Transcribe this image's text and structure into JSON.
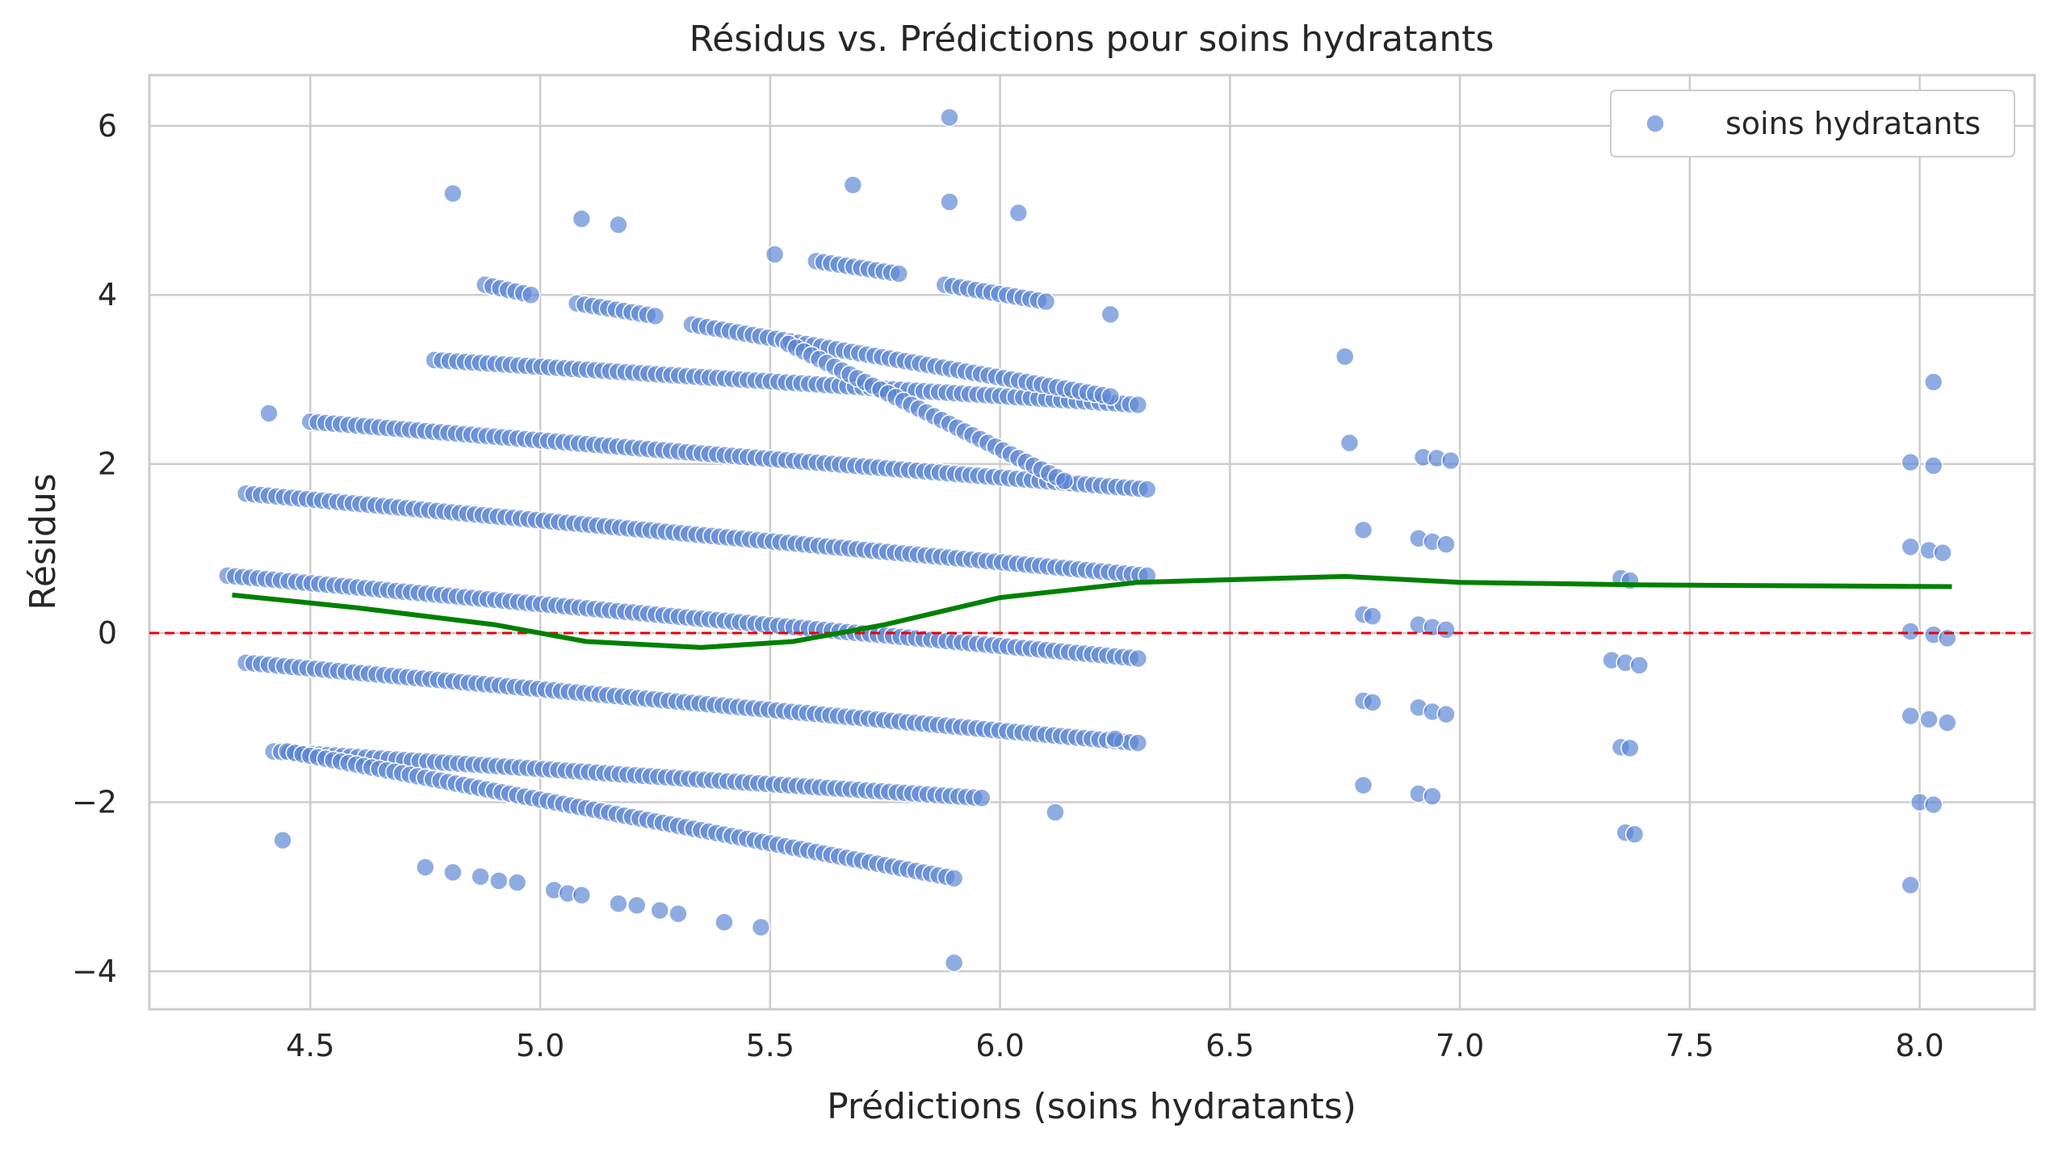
{
  "chart_data": {
    "type": "scatter",
    "title": "Résidus vs. Prédictions pour soins hydratants",
    "xlabel": "Prédictions (soins hydratants)",
    "ylabel": "Résidus",
    "xlim": [
      4.15,
      8.25
    ],
    "ylim": [
      -4.45,
      6.6
    ],
    "xticks": [
      4.5,
      5.0,
      5.5,
      6.0,
      6.5,
      7.0,
      7.5,
      8.0
    ],
    "xtick_labels": [
      "4.5",
      "5.0",
      "5.5",
      "6.0",
      "6.5",
      "7.0",
      "7.5",
      "8.0"
    ],
    "yticks": [
      -4,
      -2,
      0,
      2,
      4,
      6
    ],
    "ytick_labels": [
      "−4",
      "−2",
      "0",
      "2",
      "4",
      "6"
    ],
    "grid": true,
    "legend_position": "top-right",
    "reference_line": {
      "y": 0,
      "color": "#e8000b",
      "style": "dashed"
    },
    "colors": {
      "points": "#5a84d4",
      "lowess": "#008000",
      "grid": "#cccccc",
      "spine": "#cccccc"
    },
    "bands": [
      {
        "x_start": 4.77,
        "y_start": 3.23,
        "x_end": 6.3,
        "y_end": 2.7
      },
      {
        "x_start": 4.5,
        "y_start": 2.5,
        "x_end": 6.32,
        "y_end": 1.7
      },
      {
        "x_start": 4.36,
        "y_start": 1.65,
        "x_end": 6.32,
        "y_end": 0.68
      },
      {
        "x_start": 4.32,
        "y_start": 0.68,
        "x_end": 6.3,
        "y_end": -0.3
      },
      {
        "x_start": 4.36,
        "y_start": -0.35,
        "x_end": 6.3,
        "y_end": -1.3
      },
      {
        "x_start": 4.42,
        "y_start": -1.4,
        "x_end": 5.96,
        "y_end": -1.95
      },
      {
        "x_start": 4.88,
        "y_start": 4.12,
        "x_end": 4.98,
        "y_end": 4.0
      },
      {
        "x_start": 5.08,
        "y_start": 3.9,
        "x_end": 5.25,
        "y_end": 3.75
      },
      {
        "x_start": 5.33,
        "y_start": 3.65,
        "x_end": 6.24,
        "y_end": 2.8
      },
      {
        "x_start": 5.6,
        "y_start": 4.4,
        "x_end": 5.78,
        "y_end": 4.25
      },
      {
        "x_start": 5.88,
        "y_start": 4.12,
        "x_end": 6.1,
        "y_end": 3.92
      },
      {
        "x_start": 5.54,
        "y_start": 3.42,
        "x_end": 6.14,
        "y_end": 1.8
      },
      {
        "x_start": 4.45,
        "y_start": -1.4,
        "x_end": 5.9,
        "y_end": -2.9
      }
    ],
    "points": [
      [
        4.81,
        5.2
      ],
      [
        5.09,
        4.9
      ],
      [
        5.17,
        4.83
      ],
      [
        5.51,
        4.48
      ],
      [
        5.68,
        5.3
      ],
      [
        5.89,
        6.1
      ],
      [
        5.89,
        5.1
      ],
      [
        6.04,
        4.97
      ],
      [
        4.41,
        2.6
      ],
      [
        6.24,
        3.77
      ],
      [
        6.12,
        -2.12
      ],
      [
        6.25,
        -1.25
      ],
      [
        5.9,
        -3.9
      ],
      [
        4.44,
        -2.45
      ],
      [
        4.75,
        -2.77
      ],
      [
        4.81,
        -2.83
      ],
      [
        4.87,
        -2.88
      ],
      [
        4.91,
        -2.93
      ],
      [
        4.95,
        -2.95
      ],
      [
        5.03,
        -3.04
      ],
      [
        5.06,
        -3.08
      ],
      [
        5.09,
        -3.1
      ],
      [
        5.17,
        -3.2
      ],
      [
        5.21,
        -3.22
      ],
      [
        5.26,
        -3.28
      ],
      [
        5.3,
        -3.32
      ],
      [
        5.4,
        -3.42
      ],
      [
        5.48,
        -3.48
      ],
      [
        6.75,
        3.27
      ],
      [
        6.76,
        2.25
      ],
      [
        6.79,
        1.22
      ],
      [
        6.79,
        0.22
      ],
      [
        6.81,
        0.2
      ],
      [
        6.79,
        -0.8
      ],
      [
        6.81,
        -0.82
      ],
      [
        6.79,
        -1.8
      ],
      [
        6.92,
        2.08
      ],
      [
        6.95,
        2.07
      ],
      [
        6.98,
        2.04
      ],
      [
        6.91,
        1.12
      ],
      [
        6.94,
        1.08
      ],
      [
        6.97,
        1.05
      ],
      [
        6.91,
        0.1
      ],
      [
        6.94,
        0.07
      ],
      [
        6.97,
        0.04
      ],
      [
        6.91,
        -0.88
      ],
      [
        6.94,
        -0.93
      ],
      [
        6.97,
        -0.96
      ],
      [
        6.91,
        -1.9
      ],
      [
        6.94,
        -1.93
      ],
      [
        7.35,
        0.65
      ],
      [
        7.37,
        0.62
      ],
      [
        7.33,
        -0.32
      ],
      [
        7.36,
        -0.35
      ],
      [
        7.39,
        -0.38
      ],
      [
        7.35,
        -1.35
      ],
      [
        7.37,
        -1.36
      ],
      [
        7.36,
        -2.36
      ],
      [
        7.38,
        -2.38
      ],
      [
        7.98,
        2.02
      ],
      [
        8.03,
        1.98
      ],
      [
        8.03,
        2.97
      ],
      [
        7.98,
        1.02
      ],
      [
        8.02,
        0.98
      ],
      [
        8.05,
        0.95
      ],
      [
        7.98,
        0.02
      ],
      [
        8.03,
        -0.02
      ],
      [
        8.06,
        -0.06
      ],
      [
        7.98,
        -0.98
      ],
      [
        8.02,
        -1.02
      ],
      [
        8.06,
        -1.06
      ],
      [
        8.0,
        -2.0
      ],
      [
        8.03,
        -2.03
      ],
      [
        7.98,
        -2.98
      ]
    ],
    "lowess_line": [
      [
        4.33,
        0.45
      ],
      [
        4.6,
        0.3
      ],
      [
        4.9,
        0.1
      ],
      [
        5.1,
        -0.1
      ],
      [
        5.35,
        -0.17
      ],
      [
        5.55,
        -0.1
      ],
      [
        5.75,
        0.1
      ],
      [
        6.0,
        0.42
      ],
      [
        6.3,
        0.6
      ],
      [
        6.75,
        0.67
      ],
      [
        7.0,
        0.6
      ],
      [
        7.4,
        0.57
      ],
      [
        8.07,
        0.55
      ]
    ],
    "legend": [
      {
        "label": "soins hydratants",
        "marker": "circle"
      }
    ]
  }
}
